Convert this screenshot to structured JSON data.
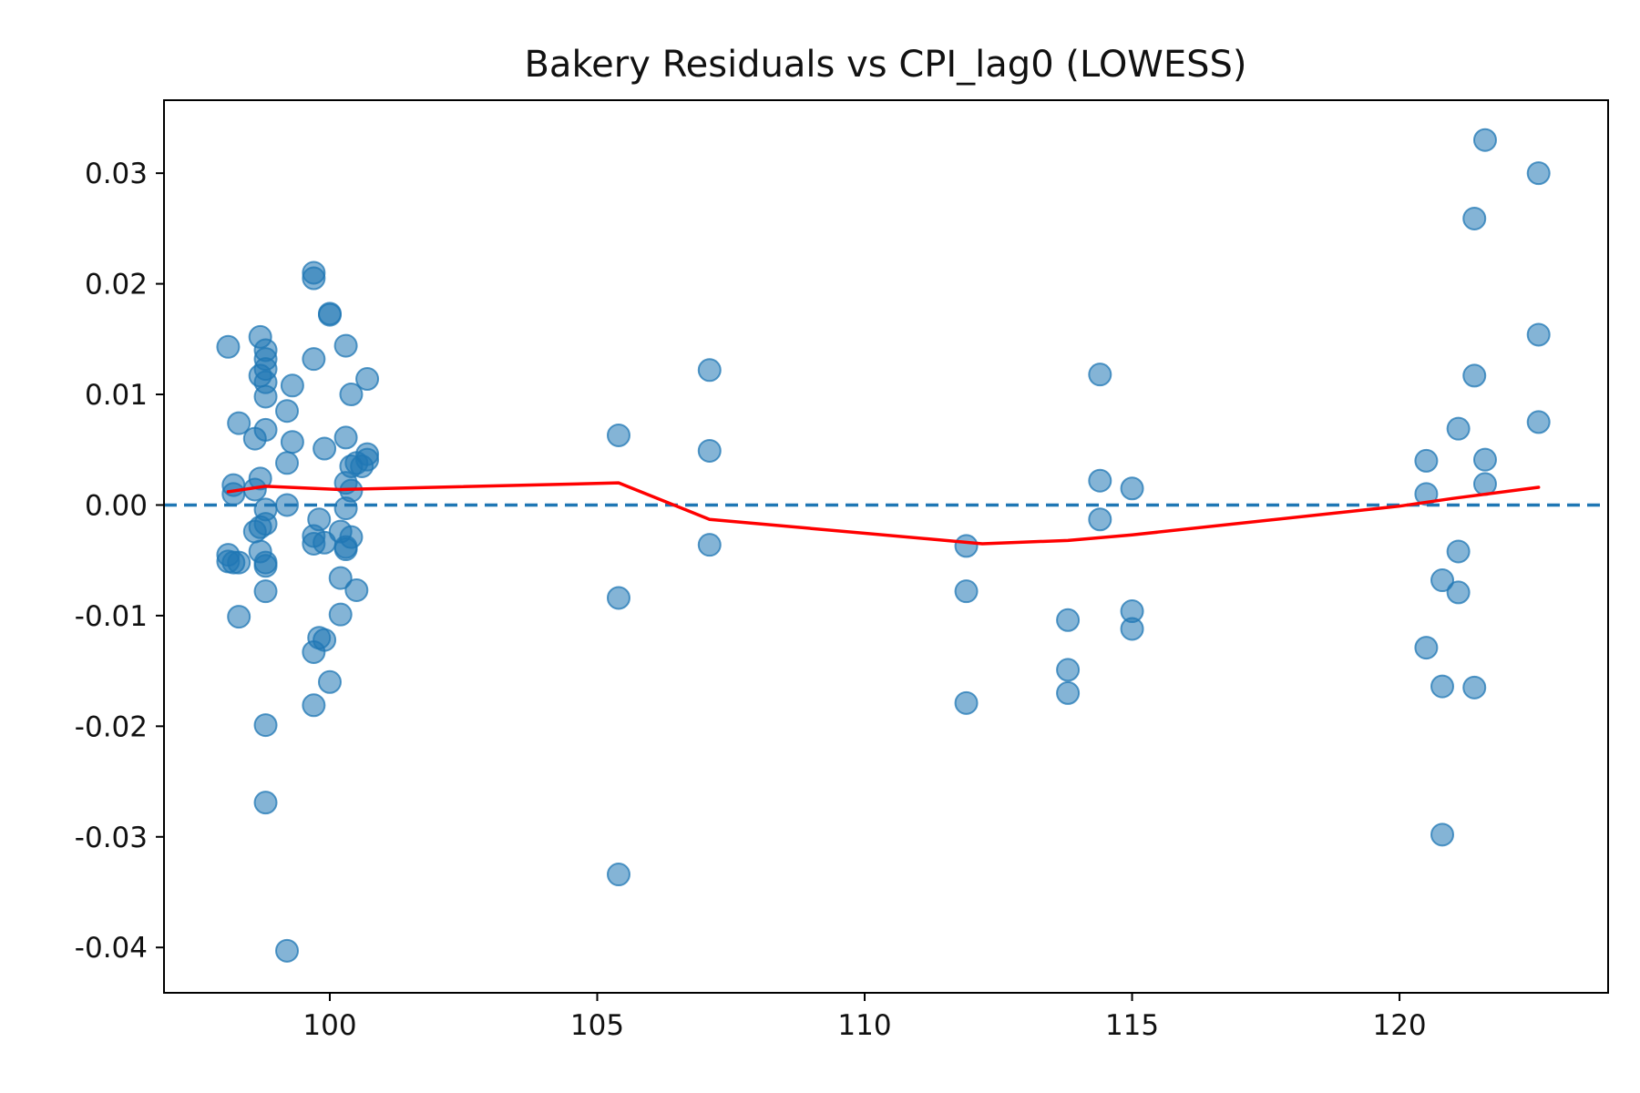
{
  "chart_data": {
    "type": "scatter",
    "title": "Bakery Residuals vs CPI_lag0 (LOWESS)",
    "xlabel": "",
    "ylabel": "",
    "xlim": [
      96.9,
      123.9
    ],
    "ylim": [
      -0.0441,
      0.0366
    ],
    "x_ticks": [
      100,
      105,
      110,
      115,
      120
    ],
    "x_tick_labels": [
      "100",
      "105",
      "110",
      "115",
      "120"
    ],
    "y_ticks": [
      0.03,
      0.02,
      0.01,
      0.0,
      -0.01,
      -0.02,
      -0.03,
      -0.04
    ],
    "y_tick_labels": [
      "0.03",
      "0.02",
      "0.01",
      "0.00",
      "-0.01",
      "-0.02",
      "-0.03",
      "-0.04"
    ],
    "grid": false,
    "reference_line": {
      "y": 0.0,
      "style": "dashed",
      "color": "#1f77b4"
    },
    "colors": {
      "points": "#1f77b4",
      "lowess": "#ff0000",
      "axes": "#000000"
    },
    "series": [
      {
        "kind": "scatter",
        "points": [
          [
            98.1,
            0.0143
          ],
          [
            98.1,
            -0.0045
          ],
          [
            98.1,
            -0.0051
          ],
          [
            98.2,
            0.0018
          ],
          [
            98.2,
            0.001
          ],
          [
            98.2,
            -0.0052
          ],
          [
            98.3,
            0.0074
          ],
          [
            98.3,
            -0.0052
          ],
          [
            98.3,
            -0.0101
          ],
          [
            98.6,
            0.006
          ],
          [
            98.6,
            -0.0024
          ],
          [
            98.6,
            0.0014
          ],
          [
            98.7,
            0.0152
          ],
          [
            98.7,
            0.0024
          ],
          [
            98.7,
            -0.0042
          ],
          [
            98.7,
            -0.002
          ],
          [
            98.7,
            0.0117
          ],
          [
            98.8,
            0.014
          ],
          [
            98.8,
            0.0132
          ],
          [
            98.8,
            0.0123
          ],
          [
            98.8,
            0.0111
          ],
          [
            98.8,
            0.0098
          ],
          [
            98.8,
            0.0068
          ],
          [
            98.8,
            -0.0004
          ],
          [
            98.8,
            -0.0017
          ],
          [
            98.8,
            -0.0052
          ],
          [
            98.8,
            -0.0055
          ],
          [
            98.8,
            -0.0078
          ],
          [
            98.8,
            -0.0199
          ],
          [
            98.8,
            -0.0269
          ],
          [
            99.2,
            0.0085
          ],
          [
            99.2,
            0.0038
          ],
          [
            99.2,
            0.0
          ],
          [
            99.2,
            -0.0403
          ],
          [
            99.3,
            0.0108
          ],
          [
            99.3,
            0.0057
          ],
          [
            99.7,
            0.021
          ],
          [
            99.7,
            0.0205
          ],
          [
            99.7,
            0.0132
          ],
          [
            99.7,
            -0.0028
          ],
          [
            99.7,
            -0.0035
          ],
          [
            99.7,
            -0.0133
          ],
          [
            99.7,
            -0.0181
          ],
          [
            99.8,
            -0.0013
          ],
          [
            99.8,
            -0.012
          ],
          [
            99.9,
            0.0051
          ],
          [
            99.9,
            -0.0034
          ],
          [
            99.9,
            -0.0122
          ],
          [
            100.0,
            0.0173
          ],
          [
            100.0,
            0.0172
          ],
          [
            100.0,
            -0.016
          ],
          [
            100.2,
            -0.0024
          ],
          [
            100.2,
            -0.0066
          ],
          [
            100.2,
            -0.0099
          ],
          [
            100.3,
            0.0144
          ],
          [
            100.3,
            0.0061
          ],
          [
            100.3,
            0.002
          ],
          [
            100.3,
            -0.0003
          ],
          [
            100.3,
            -0.0038
          ],
          [
            100.3,
            -0.004
          ],
          [
            100.4,
            0.01
          ],
          [
            100.4,
            0.0035
          ],
          [
            100.4,
            0.0013
          ],
          [
            100.4,
            -0.0029
          ],
          [
            100.5,
            0.0038
          ],
          [
            100.5,
            -0.0077
          ],
          [
            100.6,
            0.0035
          ],
          [
            100.7,
            0.0114
          ],
          [
            100.7,
            0.0046
          ],
          [
            100.7,
            0.0041
          ],
          [
            105.4,
            0.0063
          ],
          [
            105.4,
            -0.0084
          ],
          [
            105.4,
            -0.0334
          ],
          [
            107.1,
            0.0122
          ],
          [
            107.1,
            0.0049
          ],
          [
            107.1,
            -0.0036
          ],
          [
            111.9,
            -0.0037
          ],
          [
            111.9,
            -0.0078
          ],
          [
            111.9,
            -0.0179
          ],
          [
            113.8,
            -0.0104
          ],
          [
            113.8,
            -0.0149
          ],
          [
            113.8,
            -0.017
          ],
          [
            114.4,
            0.0118
          ],
          [
            114.4,
            0.0022
          ],
          [
            114.4,
            -0.0013
          ],
          [
            115.0,
            0.0015
          ],
          [
            115.0,
            -0.0096
          ],
          [
            115.0,
            -0.0112
          ],
          [
            120.5,
            0.004
          ],
          [
            120.5,
            0.001
          ],
          [
            120.5,
            -0.0129
          ],
          [
            120.8,
            -0.0068
          ],
          [
            120.8,
            -0.0164
          ],
          [
            120.8,
            -0.0298
          ],
          [
            121.1,
            0.0069
          ],
          [
            121.1,
            -0.0042
          ],
          [
            121.1,
            -0.0079
          ],
          [
            121.4,
            0.0259
          ],
          [
            121.4,
            0.0117
          ],
          [
            121.4,
            -0.0165
          ],
          [
            121.6,
            0.033
          ],
          [
            121.6,
            0.0041
          ],
          [
            121.6,
            0.0019
          ],
          [
            122.6,
            0.03
          ],
          [
            122.6,
            0.0154
          ],
          [
            122.6,
            0.0075
          ]
        ]
      },
      {
        "kind": "line",
        "points": [
          [
            98.1,
            0.0012
          ],
          [
            98.8,
            0.0017
          ],
          [
            100.2,
            0.0014
          ],
          [
            105.4,
            0.002
          ],
          [
            107.1,
            -0.0013
          ],
          [
            112.2,
            -0.0035
          ],
          [
            113.8,
            -0.0032
          ],
          [
            115.0,
            -0.0027
          ],
          [
            120.0,
            -0.0001
          ],
          [
            121.0,
            0.0006
          ],
          [
            122.6,
            0.0016
          ]
        ]
      }
    ]
  }
}
